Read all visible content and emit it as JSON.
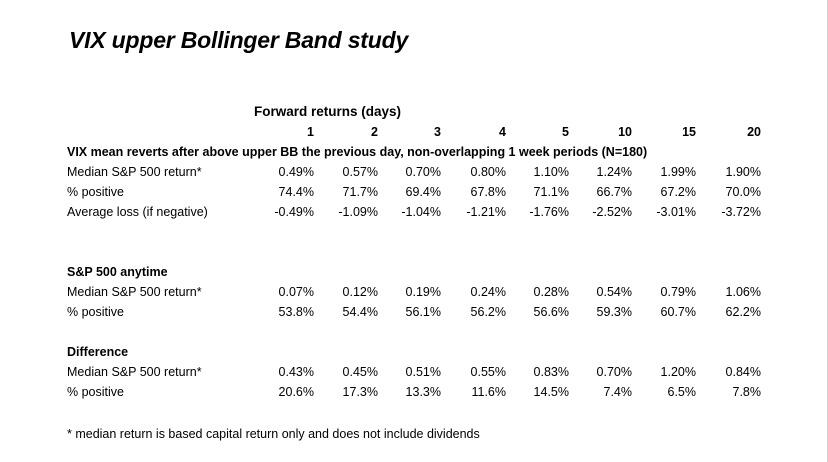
{
  "title": "VIX upper Bollinger Band study",
  "forward_header": "Forward returns (days)",
  "columns": [
    "1",
    "2",
    "3",
    "4",
    "5",
    "10",
    "15",
    "20"
  ],
  "section1": {
    "heading": "VIX mean reverts after above upper BB the previous day, non-overlapping 1 week periods (N=180)",
    "rows": [
      {
        "label": "Median S&P 500 return*",
        "values": [
          "0.49%",
          "0.57%",
          "0.70%",
          "0.80%",
          "1.10%",
          "1.24%",
          "1.99%",
          "1.90%"
        ]
      },
      {
        "label": "% positive",
        "values": [
          "74.4%",
          "71.7%",
          "69.4%",
          "67.8%",
          "71.1%",
          "66.7%",
          "67.2%",
          "70.0%"
        ]
      },
      {
        "label": "Average loss (if negative)",
        "values": [
          "-0.49%",
          "-1.09%",
          "-1.04%",
          "-1.21%",
          "-1.76%",
          "-2.52%",
          "-3.01%",
          "-3.72%"
        ]
      }
    ]
  },
  "section2": {
    "heading": "S&P 500 anytime",
    "rows": [
      {
        "label": "Median S&P 500 return*",
        "values": [
          "0.07%",
          "0.12%",
          "0.19%",
          "0.24%",
          "0.28%",
          "0.54%",
          "0.79%",
          "1.06%"
        ]
      },
      {
        "label": "% positive",
        "values": [
          "53.8%",
          "54.4%",
          "56.1%",
          "56.2%",
          "56.6%",
          "59.3%",
          "60.7%",
          "62.2%"
        ]
      }
    ]
  },
  "section3": {
    "heading": "Difference",
    "rows": [
      {
        "label": "Median S&P 500 return*",
        "values": [
          "0.43%",
          "0.45%",
          "0.51%",
          "0.55%",
          "0.83%",
          "0.70%",
          "1.20%",
          "0.84%"
        ]
      },
      {
        "label": "% positive",
        "values": [
          "20.6%",
          "17.3%",
          "13.3%",
          "11.6%",
          "14.5%",
          "7.4%",
          "6.5%",
          "7.8%"
        ]
      }
    ]
  },
  "footnote": "* median return is based capital return only and does not include dividends"
}
